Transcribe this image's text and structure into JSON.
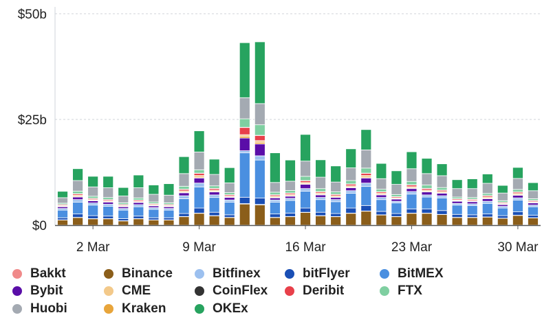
{
  "chart_data": {
    "type": "bar",
    "stacked": true,
    "title": "",
    "xlabel": "",
    "ylabel": "",
    "ylim": [
      0,
      50
    ],
    "y_ticks": [
      {
        "value": 0,
        "label": "$0"
      },
      {
        "value": 25,
        "label": "$25b"
      },
      {
        "value": 50,
        "label": "$50b"
      }
    ],
    "grid": "horizontal dashed",
    "legend_placement": "bottom",
    "categories": [
      "29 Feb",
      "1 Mar",
      "2 Mar",
      "3 Mar",
      "4 Mar",
      "5 Mar",
      "6 Mar",
      "7 Mar",
      "8 Mar",
      "9 Mar",
      "10 Mar",
      "11 Mar",
      "12 Mar",
      "13 Mar",
      "14 Mar",
      "15 Mar",
      "16 Mar",
      "17 Mar",
      "18 Mar",
      "19 Mar",
      "20 Mar",
      "21 Mar",
      "22 Mar",
      "23 Mar",
      "24 Mar",
      "25 Mar",
      "26 Mar",
      "27 Mar",
      "28 Mar",
      "29 Mar",
      "30 Mar",
      "31 Mar"
    ],
    "x_tick_labels": [
      {
        "category": "2 Mar",
        "label": "2 Mar"
      },
      {
        "category": "9 Mar",
        "label": "9 Mar"
      },
      {
        "category": "16 Mar",
        "label": "16 Mar"
      },
      {
        "category": "23 Mar",
        "label": "23 Mar"
      },
      {
        "category": "30 Mar",
        "label": "30 Mar"
      }
    ],
    "series": [
      {
        "name": "Binance",
        "color": "#8b5e1a",
        "values": [
          1.2,
          1.8,
          1.5,
          1.5,
          1.0,
          1.5,
          1.2,
          1.2,
          2.0,
          2.8,
          2.2,
          1.8,
          5.0,
          4.8,
          1.8,
          2.0,
          3.0,
          2.2,
          2.0,
          2.8,
          3.3,
          2.4,
          2.0,
          2.8,
          2.8,
          2.5,
          1.8,
          1.8,
          1.9,
          1.6,
          2.3,
          1.7
        ]
      },
      {
        "name": "CoinFlex",
        "color": "#333333",
        "values": [
          0.05,
          0.05,
          0.05,
          0.05,
          0.05,
          0.05,
          0.05,
          0.05,
          0.05,
          0.05,
          0.05,
          0.05,
          0.1,
          0.1,
          0.05,
          0.05,
          0.05,
          0.05,
          0.05,
          0.05,
          0.05,
          0.05,
          0.05,
          0.05,
          0.05,
          0.05,
          0.05,
          0.05,
          0.05,
          0.05,
          0.05,
          0.05
        ]
      },
      {
        "name": "bitFlyer",
        "color": "#1a4fb5",
        "values": [
          0.5,
          0.8,
          0.7,
          0.6,
          0.5,
          0.6,
          0.5,
          0.5,
          0.7,
          1.2,
          0.8,
          0.6,
          1.5,
          1.5,
          0.8,
          0.8,
          1.0,
          0.8,
          0.7,
          1.2,
          1.3,
          0.8,
          0.7,
          1.0,
          1.0,
          0.9,
          0.7,
          0.6,
          0.7,
          0.6,
          0.8,
          0.6
        ]
      },
      {
        "name": "BitMEX",
        "color": "#4a8fe0",
        "values": [
          1.8,
          2.8,
          2.5,
          2.3,
          2.0,
          2.2,
          2.0,
          1.8,
          3.5,
          5.0,
          3.5,
          3.0,
          10.5,
          9.0,
          2.8,
          3.0,
          4.0,
          3.0,
          2.8,
          3.5,
          4.5,
          2.8,
          2.5,
          3.5,
          2.8,
          3.0,
          2.2,
          2.2,
          2.5,
          1.8,
          2.8,
          2.0
        ]
      },
      {
        "name": "Bitfinex",
        "color": "#9cc0ef",
        "values": [
          0.4,
          0.6,
          0.5,
          0.5,
          0.4,
          0.5,
          0.4,
          0.4,
          0.7,
          0.9,
          0.6,
          0.5,
          0.5,
          1.0,
          0.5,
          0.5,
          0.6,
          0.5,
          0.5,
          0.6,
          0.8,
          0.5,
          0.4,
          0.6,
          0.5,
          0.5,
          0.4,
          0.4,
          0.5,
          0.4,
          0.5,
          0.4
        ]
      },
      {
        "name": "Bybit",
        "color": "#5a0ea8",
        "values": [
          0.4,
          0.6,
          0.5,
          0.5,
          0.4,
          0.5,
          0.4,
          0.4,
          0.7,
          1.2,
          0.7,
          0.6,
          3.0,
          2.8,
          0.5,
          0.5,
          1.0,
          0.6,
          0.5,
          0.7,
          1.2,
          0.6,
          0.5,
          0.7,
          0.7,
          0.6,
          0.5,
          0.5,
          0.6,
          0.4,
          0.6,
          0.5
        ]
      },
      {
        "name": "Kraken",
        "color": "#e8a53b",
        "values": [
          0.1,
          0.15,
          0.1,
          0.1,
          0.1,
          0.1,
          0.1,
          0.1,
          0.15,
          0.2,
          0.15,
          0.1,
          0.4,
          0.4,
          0.1,
          0.1,
          0.15,
          0.15,
          0.1,
          0.15,
          0.2,
          0.1,
          0.1,
          0.15,
          0.15,
          0.1,
          0.1,
          0.1,
          0.1,
          0.1,
          0.15,
          0.1
        ]
      },
      {
        "name": "CME",
        "color": "#f3c98a",
        "values": [
          0.2,
          0.3,
          0.2,
          0.2,
          0.2,
          0.2,
          0.2,
          0.2,
          0.3,
          0.4,
          0.3,
          0.2,
          0.4,
          0.4,
          0.3,
          0.3,
          0.3,
          0.3,
          0.3,
          0.3,
          0.4,
          0.3,
          0.2,
          0.3,
          0.3,
          0.3,
          0.2,
          0.2,
          0.3,
          0.2,
          0.3,
          0.2
        ]
      },
      {
        "name": "Deribit",
        "color": "#e8404a",
        "values": [
          0.2,
          0.3,
          0.25,
          0.25,
          0.2,
          0.25,
          0.2,
          0.2,
          0.35,
          0.5,
          0.35,
          0.3,
          1.7,
          1.2,
          0.3,
          0.3,
          0.4,
          0.3,
          0.3,
          0.4,
          0.5,
          0.3,
          0.25,
          0.4,
          0.35,
          0.3,
          0.25,
          0.25,
          0.3,
          0.2,
          0.3,
          0.25
        ]
      },
      {
        "name": "Bakkt",
        "color": "#f08a8a",
        "values": [
          0.05,
          0.05,
          0.05,
          0.05,
          0.05,
          0.05,
          0.05,
          0.05,
          0.05,
          0.05,
          0.05,
          0.05,
          0.05,
          0.05,
          0.05,
          0.05,
          0.05,
          0.05,
          0.05,
          0.05,
          0.05,
          0.05,
          0.05,
          0.05,
          0.05,
          0.05,
          0.05,
          0.05,
          0.05,
          0.05,
          0.05,
          0.05
        ]
      },
      {
        "name": "FTX",
        "color": "#7fcfa1",
        "values": [
          0.3,
          0.6,
          0.5,
          0.5,
          0.4,
          0.5,
          0.4,
          0.4,
          0.7,
          0.8,
          0.6,
          0.5,
          2.0,
          2.5,
          0.6,
          0.6,
          1.0,
          0.7,
          0.6,
          0.8,
          1.2,
          0.6,
          0.5,
          0.8,
          0.8,
          0.6,
          0.4,
          0.4,
          0.5,
          0.4,
          0.6,
          0.4
        ]
      },
      {
        "name": "Huobi",
        "color": "#a4aab2",
        "values": [
          1.3,
          2.5,
          2.2,
          2.3,
          1.6,
          2.4,
          1.8,
          1.8,
          3.0,
          4.2,
          2.7,
          2.3,
          5.0,
          5.0,
          2.3,
          2.2,
          3.6,
          2.7,
          2.3,
          3.0,
          4.3,
          2.5,
          2.4,
          3.0,
          2.7,
          2.8,
          2.0,
          2.1,
          2.4,
          1.8,
          2.6,
          1.9
        ]
      },
      {
        "name": "OKEx",
        "color": "#27a35f",
        "values": [
          1.5,
          2.8,
          2.5,
          2.7,
          2.0,
          3.0,
          2.2,
          2.7,
          4.0,
          5.0,
          3.6,
          3.6,
          13.0,
          14.6,
          7.0,
          5.0,
          6.3,
          4.1,
          3.8,
          4.5,
          4.8,
          3.6,
          3.2,
          4.0,
          3.6,
          2.8,
          2.1,
          2.3,
          2.2,
          1.8,
          2.6,
          1.9
        ]
      }
    ],
    "legend": [
      {
        "name": "Bakkt",
        "color": "#f08a8a"
      },
      {
        "name": "Binance",
        "color": "#8b5e1a"
      },
      {
        "name": "Bitfinex",
        "color": "#9cc0ef"
      },
      {
        "name": "bitFlyer",
        "color": "#1a4fb5"
      },
      {
        "name": "BitMEX",
        "color": "#4a8fe0"
      },
      {
        "name": "Bybit",
        "color": "#5a0ea8"
      },
      {
        "name": "CME",
        "color": "#f3c98a"
      },
      {
        "name": "CoinFlex",
        "color": "#333333"
      },
      {
        "name": "Deribit",
        "color": "#e8404a"
      },
      {
        "name": "FTX",
        "color": "#7fcfa1"
      },
      {
        "name": "Huobi",
        "color": "#a4aab2"
      },
      {
        "name": "Kraken",
        "color": "#e8a53b"
      },
      {
        "name": "OKEx",
        "color": "#27a35f"
      }
    ]
  }
}
